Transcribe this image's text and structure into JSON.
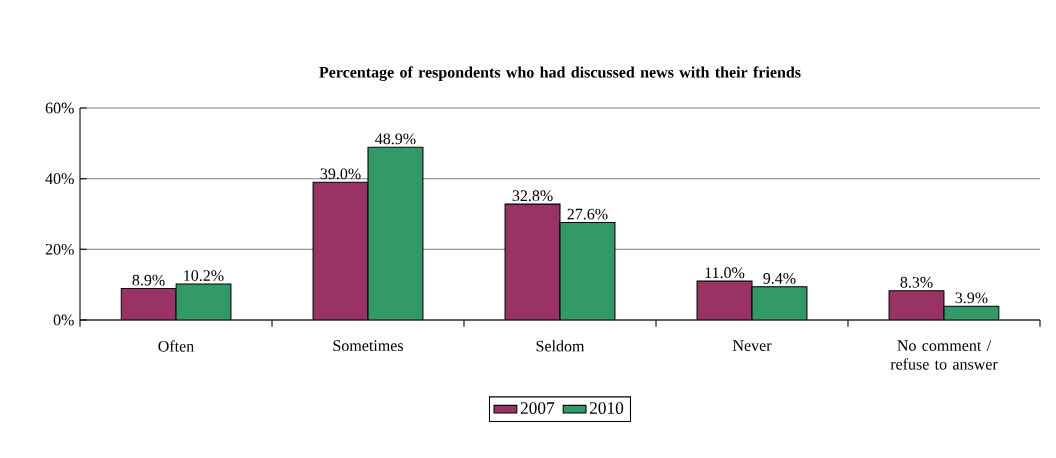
{
  "chart_data": {
    "type": "bar",
    "title": "Percentage of respondents who had discussed news with their friends",
    "categories": [
      "Often",
      "Sometimes",
      "Seldom",
      "Never",
      "No comment / refuse to answer"
    ],
    "series": [
      {
        "name": "2007",
        "color": "#993366",
        "values": [
          8.9,
          39.0,
          32.8,
          11.0,
          8.3
        ],
        "value_labels": [
          "8.9%",
          "39.0%",
          "32.8%",
          "11.0%",
          "8.3%"
        ]
      },
      {
        "name": "2010",
        "color": "#339966",
        "values": [
          10.2,
          48.9,
          27.6,
          9.4,
          3.9
        ],
        "value_labels": [
          "10.2%",
          "48.9%",
          "27.6%",
          "9.4%",
          "3.9%"
        ]
      }
    ],
    "ylim": [
      0,
      60
    ],
    "yticks": [
      {
        "value": 0,
        "label": "0%"
      },
      {
        "value": 20,
        "label": "20%"
      },
      {
        "value": 40,
        "label": "40%"
      },
      {
        "value": 60,
        "label": "60%"
      }
    ],
    "grid": "y",
    "legend": "bottom"
  }
}
